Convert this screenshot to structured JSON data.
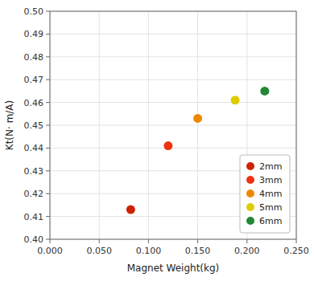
{
  "chart_data": {
    "type": "scatter",
    "xlabel": "Magnet Weight(kg)",
    "ylabel": "Kt(N· m/A)",
    "series": [
      {
        "name": "2mm",
        "color": "#cc2200",
        "x": [
          0.082
        ],
        "values": [
          0.413
        ]
      },
      {
        "name": "3mm",
        "color": "#ee3311",
        "x": [
          0.12
        ],
        "values": [
          0.441
        ]
      },
      {
        "name": "4mm",
        "color": "#ee8800",
        "x": [
          0.15
        ],
        "values": [
          0.453
        ]
      },
      {
        "name": "5mm",
        "color": "#ddcc00",
        "x": [
          0.188
        ],
        "values": [
          0.461
        ]
      },
      {
        "name": "6mm",
        "color": "#228833",
        "x": [
          0.218
        ],
        "values": [
          0.465
        ]
      }
    ],
    "xlim": [
      0.0,
      0.25
    ],
    "ylim": [
      0.4,
      0.5
    ],
    "xticks": [
      {
        "value": 0.0,
        "label": "0.000"
      },
      {
        "value": 0.05,
        "label": "0.050"
      },
      {
        "value": 0.1,
        "label": "0.100"
      },
      {
        "value": 0.15,
        "label": "0.150"
      },
      {
        "value": 0.2,
        "label": "0.200"
      },
      {
        "value": 0.25,
        "label": "0.250"
      }
    ],
    "yticks": [
      {
        "value": 0.4,
        "label": "0.40"
      },
      0.41,
      0.42,
      0.43,
      0.44,
      0.45,
      0.46,
      0.47,
      0.48,
      0.49,
      {
        "value": 0.5,
        "label": "0.50"
      }
    ],
    "grid": true,
    "legend": "lower right"
  }
}
